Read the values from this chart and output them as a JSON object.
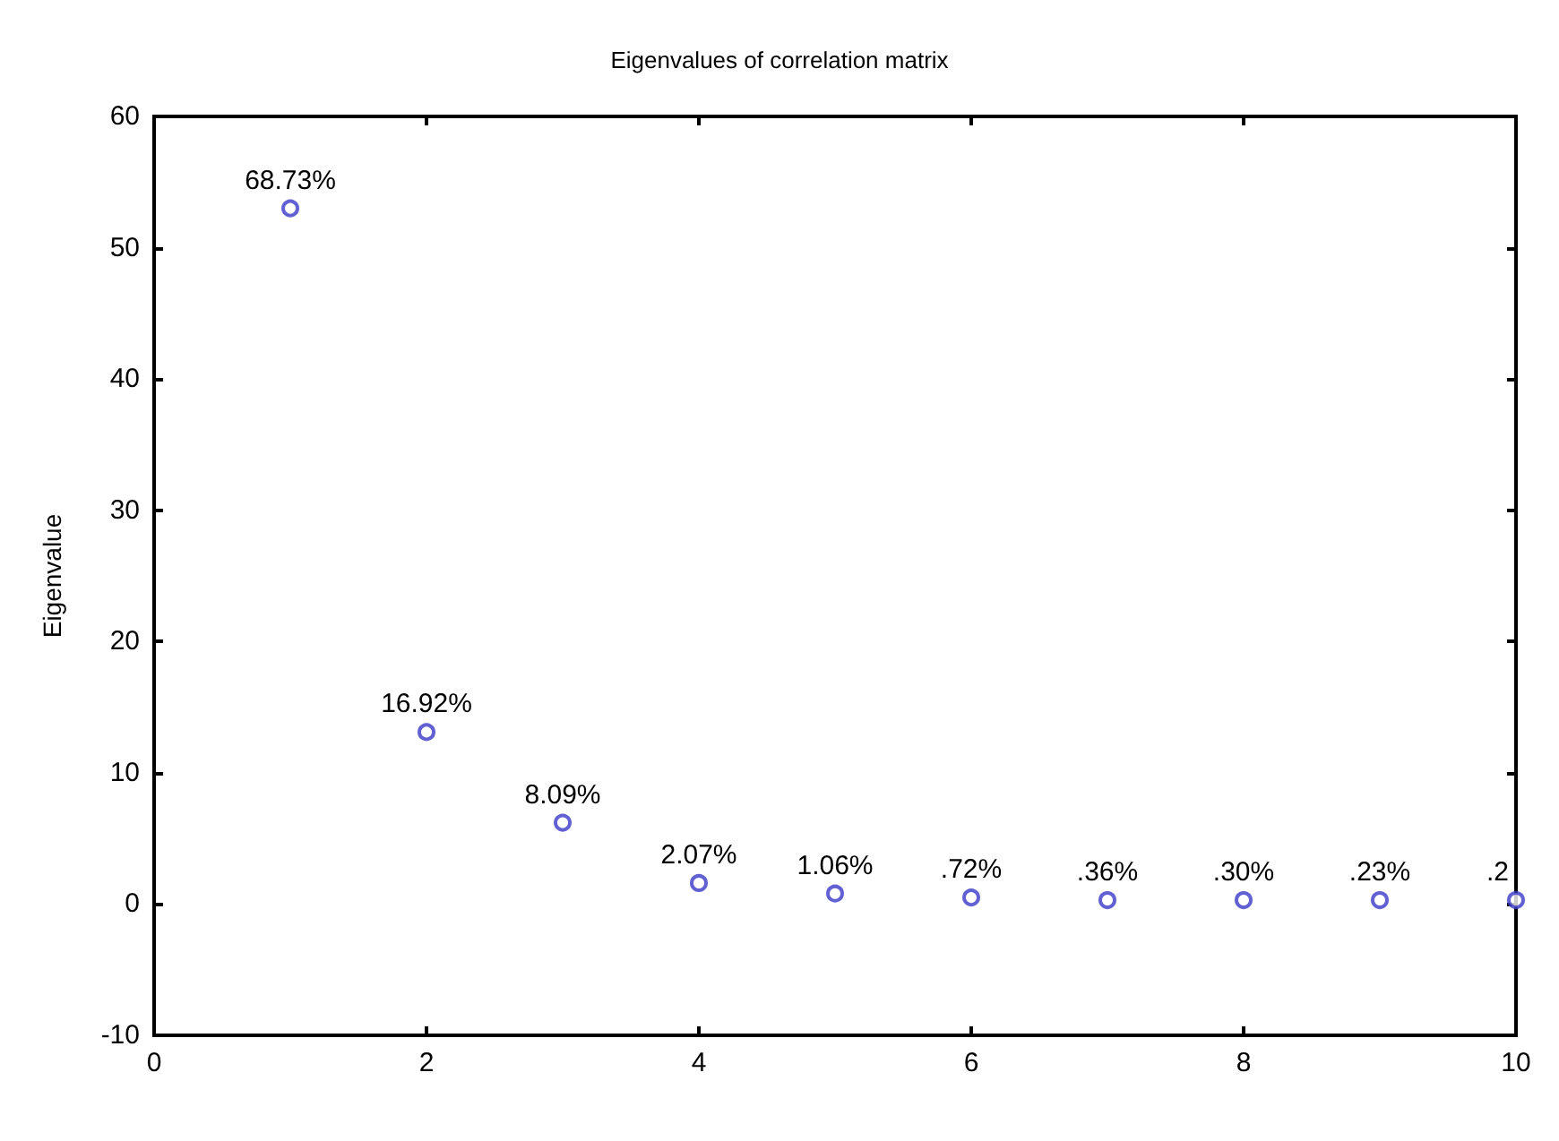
{
  "chart_data": {
    "type": "scatter",
    "title": "Eigenvalues of correlation matrix",
    "ylabel": "Eigenvalue",
    "x": [
      1,
      2,
      3,
      4,
      5,
      6,
      7,
      8,
      9,
      10
    ],
    "series": [
      {
        "color": "#3a3ac8",
        "values": [
          53,
          13.1,
          6.2,
          1.6,
          0.8,
          0.5,
          0.3,
          0.3,
          0.3,
          0.3
        ]
      }
    ],
    "annotations": [
      {
        "text": "68.73%",
        "x": 1,
        "y": 53
      },
      {
        "text": "16.92%",
        "x": 2,
        "y": 13.1
      },
      {
        "text": "8.09%",
        "x": 3,
        "y": 6.2
      },
      {
        "text": "2.07%",
        "x": 4,
        "y": 1.6
      },
      {
        "text": "1.06%",
        "x": 5,
        "y": 0.8
      },
      {
        "text": ".72%",
        "x": 6,
        "y": 0.5
      },
      {
        "text": ".36%",
        "x": 7,
        "y": 0.3
      },
      {
        "text": ".30%",
        "x": 8,
        "y": 0.3
      },
      {
        "text": ".23%",
        "x": 9,
        "y": 0.3
      },
      {
        "text": ".2",
        "x": 10,
        "y": 0.3
      }
    ],
    "xlim": [
      0,
      10
    ],
    "xticks": [
      0,
      2,
      4,
      6,
      8,
      10
    ],
    "ylim": [
      -10,
      60
    ],
    "yticks": [
      -10,
      0,
      10,
      20,
      30,
      40,
      50,
      60
    ],
    "marker": "circle"
  }
}
